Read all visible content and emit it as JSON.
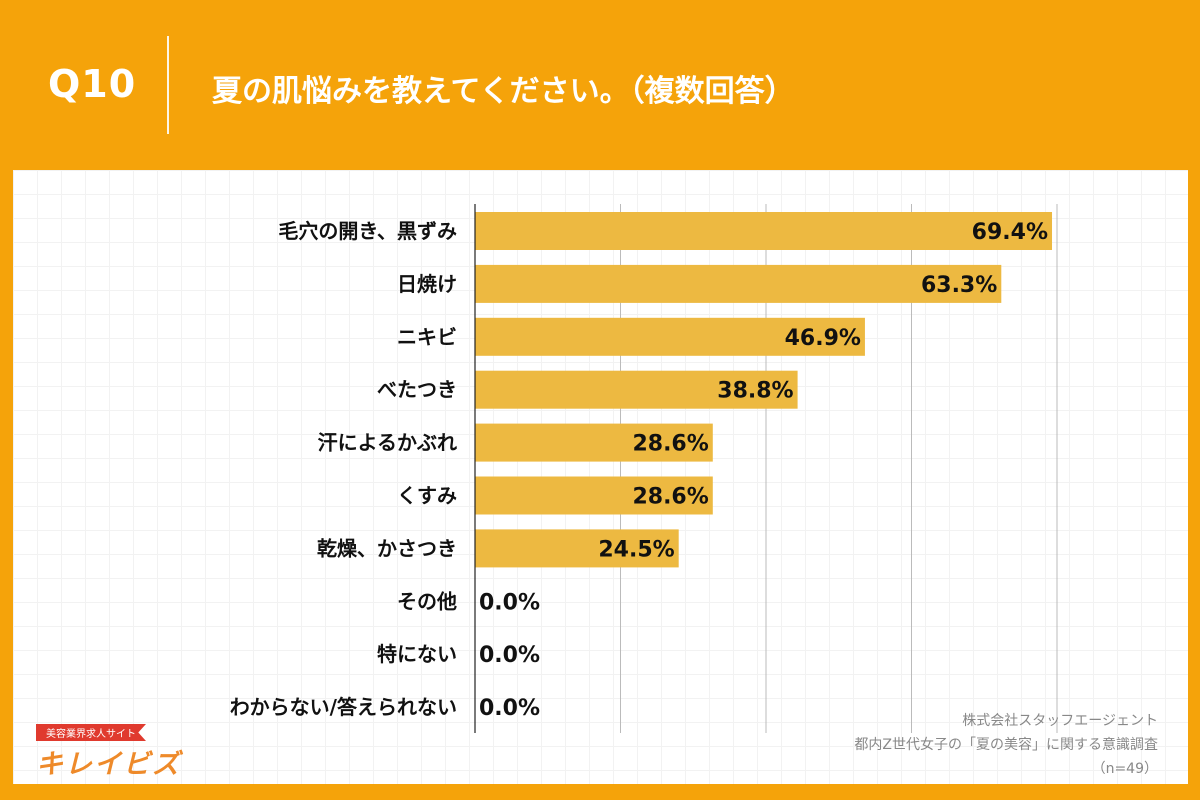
{
  "header": {
    "question_no": "Q10",
    "title": "夏の肌悩みを教えてください。（複数回答）"
  },
  "colors": {
    "background": "#F5A30A",
    "bar": "#EDB941",
    "text": "#111111"
  },
  "chart_data": {
    "type": "bar",
    "orientation": "horizontal",
    "categories": [
      "毛穴の開き、黒ずみ",
      "日焼け",
      "ニキビ",
      "べたつき",
      "汗によるかぶれ",
      "くすみ",
      "乾燥、かさつき",
      "その他",
      "特にない",
      "わからない/答えられない"
    ],
    "values": [
      69.4,
      63.3,
      46.9,
      38.8,
      28.6,
      28.6,
      24.5,
      0.0,
      0.0,
      0.0
    ],
    "value_labels": [
      "69.4%",
      "63.3%",
      "46.9%",
      "38.8%",
      "28.6%",
      "28.6%",
      "24.5%",
      "0.0%",
      "0.0%",
      "0.0%"
    ],
    "xlim": [
      0,
      70
    ],
    "grid": true,
    "unit": "%"
  },
  "logo": {
    "tagline": "美容業界求人サイト",
    "name": "キレイビズ"
  },
  "source": {
    "company": "株式会社スタッフエージェント",
    "survey": "都内Z世代女子の「夏の美容」に関する意識調査",
    "sample": "（n=49）"
  }
}
